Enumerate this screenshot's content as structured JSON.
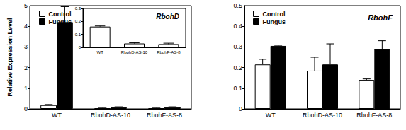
{
  "chart_data": [
    {
      "type": "bar",
      "ylabel": "Relative Expression Level",
      "categories": [
        "WT",
        "RbohD-AS-10",
        "RbohF-AS-8"
      ],
      "series": [
        {
          "name": "Control",
          "color": "#ffffff",
          "values": [
            0.18,
            0.03,
            0.03
          ],
          "errors": [
            0.03,
            0.01,
            0.01
          ]
        },
        {
          "name": "Fungus",
          "color": "#000000",
          "values": [
            4.2,
            0.08,
            0.08
          ],
          "errors": [
            0.75,
            0.02,
            0.02
          ]
        }
      ],
      "ylim": [
        0,
        5
      ],
      "yticks": [
        0,
        1,
        2,
        3,
        4,
        5
      ],
      "legend": "upper left"
    },
    {
      "type": "bar",
      "title": "RbohD",
      "categories": [
        "WT",
        "RbohD-AS-10",
        "RbohF-AS-8"
      ],
      "series": [
        {
          "color": "#ffffff",
          "values": [
            0.16,
            0.03,
            0.025
          ],
          "errors": [
            0.005,
            0.005,
            0.007
          ]
        }
      ],
      "ylim": [
        0,
        0.3
      ],
      "yticks": [
        0,
        0.1,
        0.2,
        0.3
      ]
    },
    {
      "type": "bar",
      "title": "RbohF",
      "categories": [
        "WT",
        "RbohD-AS-10",
        "RbohF-AS-8"
      ],
      "series": [
        {
          "name": "Control",
          "color": "#ffffff",
          "values": [
            0.215,
            0.185,
            0.14
          ],
          "errors": [
            0.025,
            0.065,
            0.005
          ]
        },
        {
          "name": "Fungus",
          "color": "#000000",
          "values": [
            0.305,
            0.215,
            0.29
          ],
          "errors": [
            0.003,
            0.1,
            0.04
          ]
        }
      ],
      "ylim": [
        0,
        0.5
      ],
      "yticks": [
        0,
        0.1,
        0.2,
        0.3,
        0.4,
        0.5
      ],
      "legend": "upper left"
    }
  ]
}
